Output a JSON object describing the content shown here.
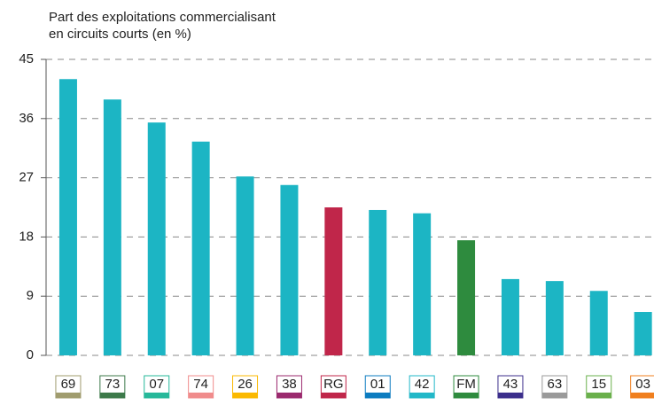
{
  "chart_data": {
    "type": "bar",
    "title": [
      "Part des exploitations commercialisant",
      "en circuits courts (en %)"
    ],
    "categories": [
      "69",
      "73",
      "07",
      "74",
      "26",
      "38",
      "RG",
      "01",
      "42",
      "FM",
      "43",
      "63",
      "15",
      "03"
    ],
    "values": [
      42.0,
      38.9,
      35.4,
      32.5,
      27.2,
      25.9,
      22.5,
      22.1,
      21.6,
      17.5,
      11.6,
      11.3,
      9.8,
      6.6
    ],
    "bar_colors": [
      "#1cb5c4",
      "#1cb5c4",
      "#1cb5c4",
      "#1cb5c4",
      "#1cb5c4",
      "#1cb5c4",
      "#c0264a",
      "#1cb5c4",
      "#1cb5c4",
      "#2e8b3e",
      "#1cb5c4",
      "#1cb5c4",
      "#1cb5c4",
      "#1cb5c4"
    ],
    "label_colors": [
      "#a09c6e",
      "#3d7a4a",
      "#26b89a",
      "#f08c8c",
      "#fbb900",
      "#9b2a6e",
      "#c0264a",
      "#0c7cc0",
      "#22b8c8",
      "#2e8b3e",
      "#3c2f8c",
      "#9a9a9a",
      "#6ab04c",
      "#f07f1e"
    ],
    "ylim": [
      0,
      45
    ],
    "yticks": [
      0,
      9,
      18,
      27,
      36,
      45
    ],
    "grid": true
  }
}
